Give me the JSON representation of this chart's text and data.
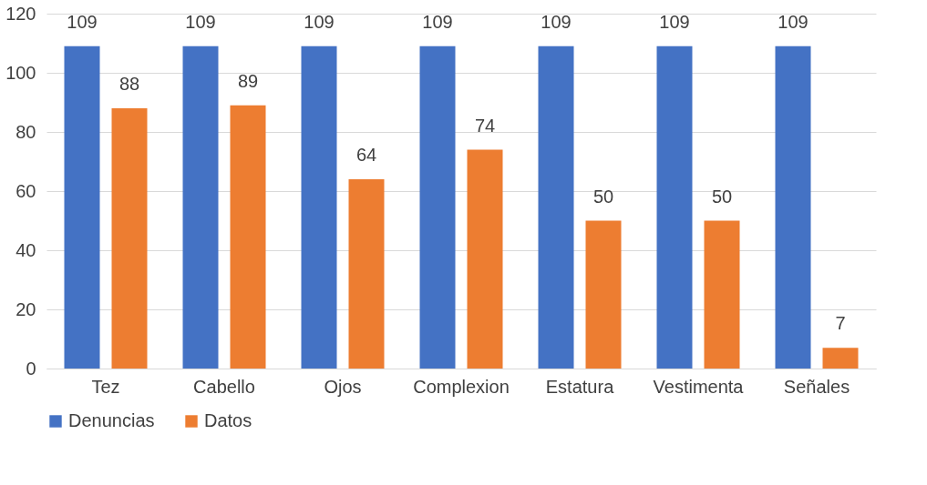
{
  "chart_data": {
    "type": "bar",
    "categories": [
      "Tez",
      "Cabello",
      "Ojos",
      "Complexion",
      "Estatura",
      "Vestimenta",
      "Señales"
    ],
    "series": [
      {
        "name": "Denuncias",
        "color": "#4472c4",
        "values": [
          109,
          109,
          109,
          109,
          109,
          109,
          109
        ]
      },
      {
        "name": "Datos",
        "color": "#ed7d31",
        "values": [
          88,
          89,
          64,
          74,
          50,
          50,
          7
        ]
      }
    ],
    "ylim": [
      0,
      120
    ],
    "yticks": [
      0,
      20,
      40,
      60,
      80,
      100,
      120
    ],
    "grid": "y",
    "legend": "bottom",
    "data_labels": true
  }
}
